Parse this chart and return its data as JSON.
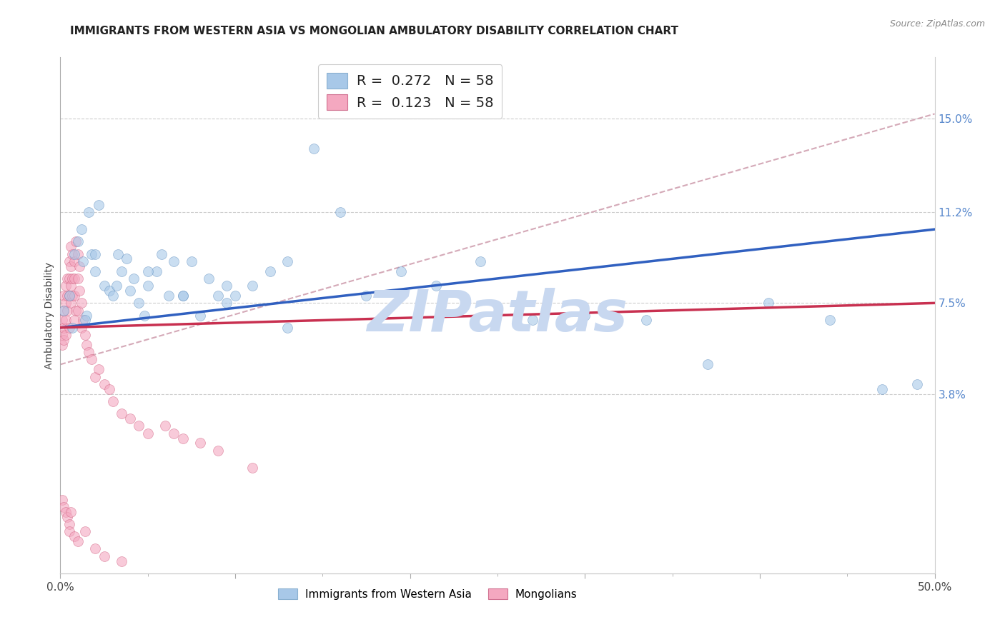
{
  "title": "IMMIGRANTS FROM WESTERN ASIA VS MONGOLIAN AMBULATORY DISABILITY CORRELATION CHART",
  "source": "Source: ZipAtlas.com",
  "ylabel": "Ambulatory Disability",
  "right_yticks": [
    "3.8%",
    "7.5%",
    "11.2%",
    "15.0%"
  ],
  "right_ytick_vals": [
    0.038,
    0.075,
    0.112,
    0.15
  ],
  "xlim": [
    0.0,
    0.5
  ],
  "ylim": [
    -0.035,
    0.175
  ],
  "legend1_entries": [
    {
      "label_r": "R = ",
      "label_val": "0.272",
      "label_n": "   N = ",
      "label_nval": "58",
      "color": "#a8c8e8"
    },
    {
      "label_r": "R = ",
      "label_val": "0.123",
      "label_n": "   N = ",
      "label_nval": "58",
      "color": "#f4b8c8"
    }
  ],
  "blue_scatter_x": [
    0.002,
    0.005,
    0.008,
    0.01,
    0.012,
    0.013,
    0.015,
    0.016,
    0.018,
    0.02,
    0.022,
    0.025,
    0.028,
    0.03,
    0.033,
    0.035,
    0.038,
    0.04,
    0.042,
    0.045,
    0.048,
    0.05,
    0.055,
    0.058,
    0.062,
    0.065,
    0.07,
    0.075,
    0.08,
    0.085,
    0.09,
    0.095,
    0.1,
    0.11,
    0.12,
    0.13,
    0.145,
    0.16,
    0.175,
    0.195,
    0.215,
    0.24,
    0.27,
    0.3,
    0.335,
    0.37,
    0.405,
    0.44,
    0.47,
    0.49,
    0.007,
    0.014,
    0.02,
    0.032,
    0.05,
    0.07,
    0.095,
    0.13
  ],
  "blue_scatter_y": [
    0.072,
    0.078,
    0.095,
    0.1,
    0.105,
    0.092,
    0.07,
    0.112,
    0.095,
    0.088,
    0.115,
    0.082,
    0.08,
    0.078,
    0.095,
    0.088,
    0.093,
    0.08,
    0.085,
    0.075,
    0.07,
    0.082,
    0.088,
    0.095,
    0.078,
    0.092,
    0.078,
    0.092,
    0.07,
    0.085,
    0.078,
    0.082,
    0.078,
    0.082,
    0.088,
    0.092,
    0.138,
    0.112,
    0.078,
    0.088,
    0.082,
    0.092,
    0.068,
    0.07,
    0.068,
    0.05,
    0.075,
    0.068,
    0.04,
    0.042,
    0.065,
    0.068,
    0.095,
    0.082,
    0.088,
    0.078,
    0.075,
    0.065
  ],
  "pink_scatter_x": [
    0.001,
    0.001,
    0.001,
    0.002,
    0.002,
    0.002,
    0.002,
    0.003,
    0.003,
    0.003,
    0.003,
    0.004,
    0.004,
    0.004,
    0.005,
    0.005,
    0.005,
    0.005,
    0.006,
    0.006,
    0.006,
    0.006,
    0.007,
    0.007,
    0.007,
    0.008,
    0.008,
    0.008,
    0.008,
    0.009,
    0.009,
    0.01,
    0.01,
    0.01,
    0.011,
    0.011,
    0.012,
    0.012,
    0.013,
    0.014,
    0.015,
    0.016,
    0.018,
    0.02,
    0.022,
    0.025,
    0.028,
    0.03,
    0.035,
    0.04,
    0.045,
    0.05,
    0.06,
    0.065,
    0.07,
    0.08,
    0.09,
    0.11
  ],
  "pink_scatter_y": [
    0.068,
    0.062,
    0.058,
    0.078,
    0.072,
    0.065,
    0.06,
    0.082,
    0.075,
    0.068,
    0.062,
    0.085,
    0.078,
    0.072,
    0.092,
    0.085,
    0.078,
    0.065,
    0.098,
    0.09,
    0.082,
    0.075,
    0.095,
    0.085,
    0.078,
    0.092,
    0.085,
    0.078,
    0.068,
    0.1,
    0.072,
    0.095,
    0.085,
    0.072,
    0.09,
    0.08,
    0.075,
    0.065,
    0.068,
    0.062,
    0.058,
    0.055,
    0.052,
    0.045,
    0.048,
    0.042,
    0.04,
    0.035,
    0.03,
    0.028,
    0.025,
    0.022,
    0.025,
    0.022,
    0.02,
    0.018,
    0.015,
    0.008
  ],
  "pink_extra_x": [
    0.001,
    0.002,
    0.003,
    0.004,
    0.005,
    0.006,
    0.005,
    0.008,
    0.01,
    0.014,
    0.02,
    0.025,
    0.035
  ],
  "pink_extra_y": [
    -0.005,
    -0.008,
    -0.01,
    -0.012,
    -0.015,
    -0.01,
    -0.018,
    -0.02,
    -0.022,
    -0.018,
    -0.025,
    -0.028,
    -0.03
  ],
  "blue_line_y_start": 0.065,
  "blue_line_y_end": 0.105,
  "pink_line_y_start": 0.065,
  "pink_line_y_end": 0.075,
  "dashed_line_y_start": 0.05,
  "dashed_line_y_end": 0.152,
  "scatter_color_blue": "#a8c8e8",
  "scatter_edge_blue": "#6090c0",
  "scatter_color_pink": "#f4a8c0",
  "scatter_edge_pink": "#d06080",
  "line_color_blue": "#3060c0",
  "line_color_pink": "#c83050",
  "dashed_line_color": "#d0a0b0",
  "watermark": "ZIPatlas",
  "watermark_color": "#c8d8f0",
  "background_color": "#ffffff",
  "title_fontsize": 11,
  "scatter_size": 100,
  "scatter_alpha": 0.6
}
